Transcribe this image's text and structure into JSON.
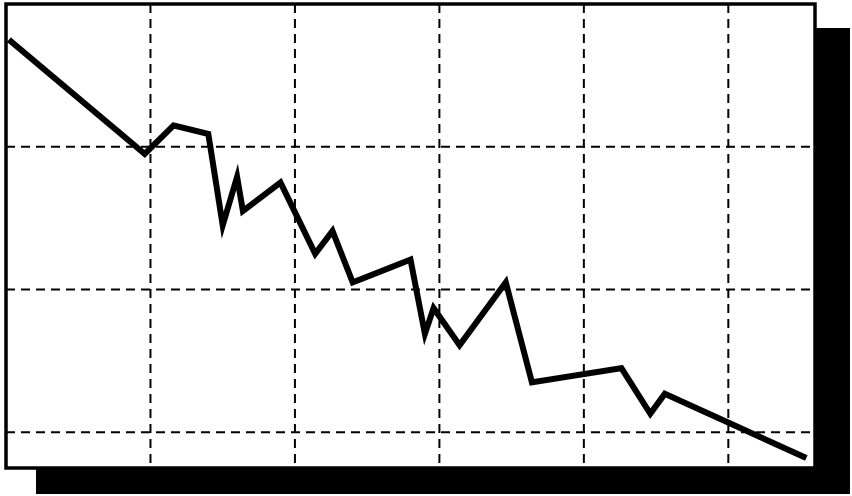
{
  "chart_data": {
    "type": "line",
    "title": "",
    "xlabel": "",
    "ylabel": "",
    "grid": true,
    "grid_style": "dashed",
    "legend": "none",
    "frame_shadow": true,
    "colors": {
      "line": "#000000",
      "frame": "#000000",
      "grid": "#000000",
      "shadow": "#000000",
      "background": "#ffffff"
    },
    "xlim": [
      0,
      5.6
    ],
    "ylim": [
      0,
      3.25
    ],
    "x_grid_values": [
      1,
      2,
      3,
      4,
      5
    ],
    "y_grid_values": [
      0.25,
      1.25,
      2.25
    ],
    "series": [
      {
        "x": [
          0.02,
          0.96,
          1.16,
          1.4,
          1.5,
          1.6,
          1.64,
          1.9,
          2.14,
          2.26,
          2.4,
          2.8,
          2.9,
          2.96,
          3.14,
          3.46,
          3.64,
          4.26,
          4.46,
          4.56,
          5.54
        ],
        "y": [
          3.0,
          2.2,
          2.4,
          2.34,
          1.7,
          2.04,
          1.8,
          2.0,
          1.5,
          1.66,
          1.3,
          1.46,
          0.94,
          1.12,
          0.86,
          1.3,
          0.6,
          0.7,
          0.38,
          0.52,
          0.07
        ]
      }
    ]
  }
}
